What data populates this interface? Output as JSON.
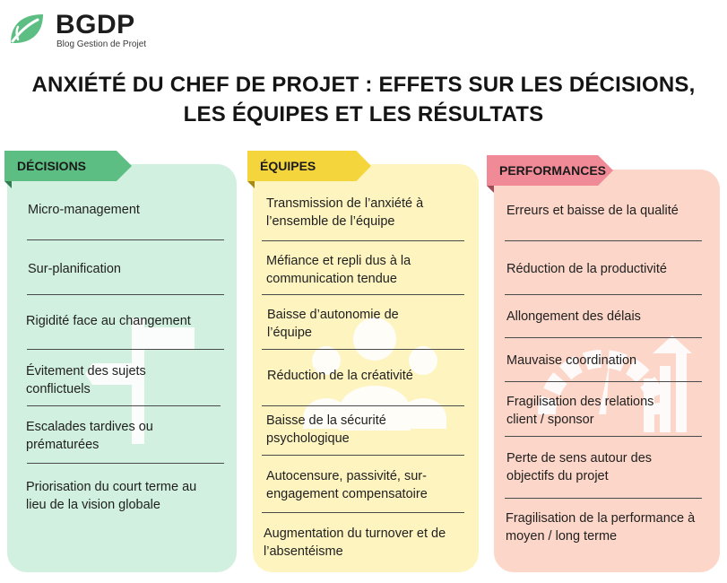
{
  "brand": {
    "name": "BGDP",
    "tagline": "Blog Gestion de Projet",
    "color": "#5cbe82"
  },
  "title": {
    "line1": "ANXIÉTÉ DU CHEF DE PROJET : EFFETS SUR LES DÉCISIONS,",
    "line2": "LES ÉQUIPES ET LES RÉSULTATS"
  },
  "columns": {
    "decisions": {
      "label": "DÉCISIONS",
      "tab_color": "#5cbe82",
      "panel_color": "#d1f0df",
      "icon": "signpost-icon",
      "items": [
        "Micro-management",
        "Sur-planification",
        "Rigidité face au changement",
        "Évitement des sujets conflictuels",
        "Escalades tardives ou prématurées",
        "Priorisation du court terme au lieu de la vision globale"
      ]
    },
    "equipes": {
      "label": "ÉQUIPES",
      "tab_color": "#f5d53c",
      "panel_color": "#fdf4c0",
      "icon": "team-icon",
      "items": [
        "Transmission de l’anxiété à l’ensemble de l’équipe",
        "Méfiance et repli dus à la communication tendue",
        "Baisse d’autonomie de l’équipe",
        "Réduction de la créativité",
        "Baisse de la sécurité psychologique",
        "Autocensure, passivité, sur-engagement compensatoire",
        "Augmentation du turnover et de l’absentéisme"
      ]
    },
    "performances": {
      "label": "PERFORMANCES",
      "tab_color": "#f08a96",
      "panel_color": "#fcd6c8",
      "icon": "performance-gauge-icon",
      "items": [
        "Erreurs et baisse de la qualité",
        "Réduction de la productivité",
        "Allongement des délais",
        "Mauvaise coordination",
        "Fragilisation des relations client / sponsor",
        "Perte de sens autour des objectifs du projet",
        "Fragilisation de la performance à moyen / long terme"
      ]
    }
  }
}
